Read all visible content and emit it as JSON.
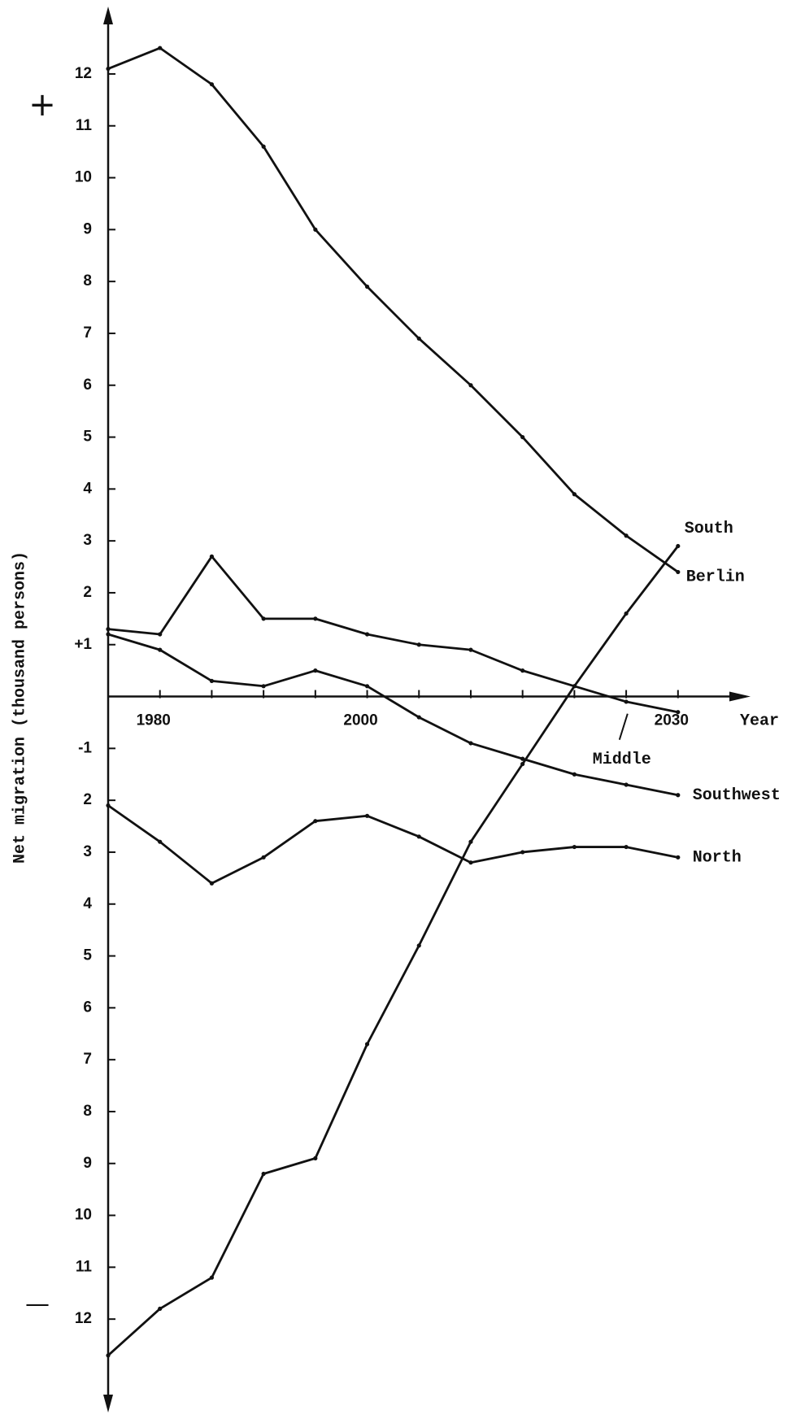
{
  "chart_data": {
    "type": "line",
    "y_label": "Net migration (thousand persons)",
    "x_label": "Year",
    "annotations": [
      "+",
      "—"
    ],
    "x": [
      1975,
      1980,
      1985,
      1990,
      1995,
      2000,
      2005,
      2010,
      2015,
      2020,
      2025,
      2030
    ],
    "series": [
      {
        "name": "Berlin",
        "color": "#111111",
        "values": [
          12.1,
          12.5,
          11.8,
          10.6,
          9.0,
          7.9,
          6.9,
          6.0,
          5.0,
          3.9,
          3.1,
          2.4
        ]
      },
      {
        "name": "South",
        "color": "#111111",
        "values": [
          -12.7,
          -11.8,
          -11.2,
          -9.2,
          -8.9,
          -6.7,
          -4.8,
          -2.8,
          -1.3,
          0.2,
          1.6,
          2.9
        ]
      },
      {
        "name": "Middle",
        "color": "#111111",
        "values": [
          1.3,
          1.2,
          2.7,
          1.5,
          1.5,
          1.2,
          1.0,
          0.9,
          0.5,
          0.2,
          -0.1,
          -0.3
        ]
      },
      {
        "name": "Southwest",
        "color": "#111111",
        "values": [
          1.2,
          0.9,
          0.3,
          0.2,
          0.5,
          0.2,
          -0.4,
          -0.9,
          -1.2,
          -1.5,
          -1.7,
          -1.9
        ]
      },
      {
        "name": "North",
        "color": "#111111",
        "values": [
          -2.1,
          -2.8,
          -3.6,
          -3.1,
          -2.4,
          -2.3,
          -2.7,
          -3.2,
          -3.0,
          -2.9,
          -2.9,
          -3.1
        ]
      }
    ],
    "xlim": [
      1975,
      2037
    ],
    "ylim": [
      -13.8,
      13.3
    ],
    "xticks": [
      1980,
      2000,
      2030
    ],
    "yticks": [
      12,
      11,
      10,
      9,
      8,
      7,
      6,
      5,
      4,
      3,
      2,
      {
        "value": 1,
        "label": "+1"
      },
      -1,
      {
        "value": -2,
        "label": "2"
      },
      {
        "value": -3,
        "label": "3"
      },
      {
        "value": -4,
        "label": "4"
      },
      {
        "value": -5,
        "label": "5"
      },
      {
        "value": -6,
        "label": "6"
      },
      {
        "value": -7,
        "label": "7"
      },
      {
        "value": -8,
        "label": "8"
      },
      {
        "value": -9,
        "label": "9"
      },
      {
        "value": -10,
        "label": "10"
      },
      {
        "value": -11,
        "label": "11"
      },
      {
        "value": -12,
        "label": "12"
      }
    ],
    "grid": false
  }
}
